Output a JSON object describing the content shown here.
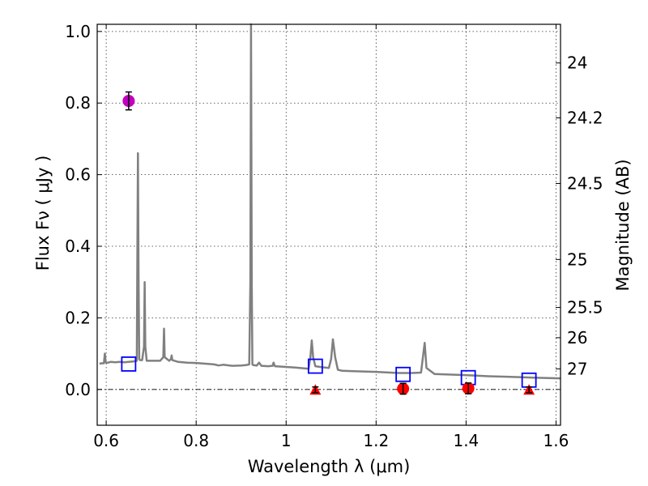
{
  "chart_data": {
    "type": "scatter",
    "xlabel": "Wavelength  λ (μm)",
    "ylabel": "Flux  Fν  ( μJy )",
    "y2label": "Magnitude (AB)",
    "xlim": [
      0.58,
      1.61
    ],
    "ylim": [
      -0.1,
      1.02
    ],
    "x_ticks": [
      0.6,
      0.8,
      1.0,
      1.2,
      1.4,
      1.6
    ],
    "x_tick_labels": [
      "0.6",
      "0.8",
      "1",
      "1.2",
      "1.4",
      "1.6"
    ],
    "y_ticks": [
      0.0,
      0.2,
      0.4,
      0.6,
      0.8,
      1.0
    ],
    "y_tick_labels": [
      "0.0",
      "0.2",
      "0.4",
      "0.6",
      "0.8",
      "1.0"
    ],
    "y2_ticks": [
      24,
      24.2,
      24.5,
      25,
      25.5,
      26,
      27
    ],
    "y2_tick_labels": [
      "24",
      "24.2",
      "24.5",
      "25",
      "25.5",
      "26",
      "27"
    ],
    "grid": true,
    "colors": {
      "spectrum": "#808080",
      "model_boxes": "#0000ff",
      "detection_magenta": "#bf00bf",
      "photometry_red": "#ff0000",
      "zero_line": "#000000"
    },
    "series": [
      {
        "name": "model spectrum",
        "kind": "line",
        "x": [
          0.585,
          0.59,
          0.595,
          0.597,
          0.599,
          0.601,
          0.61,
          0.62,
          0.63,
          0.64,
          0.65,
          0.66,
          0.668,
          0.669,
          0.6705,
          0.672,
          0.6735,
          0.675,
          0.68,
          0.684,
          0.6855,
          0.687,
          0.69,
          0.7,
          0.72,
          0.727,
          0.7285,
          0.73,
          0.74,
          0.744,
          0.7455,
          0.747,
          0.76,
          0.78,
          0.8,
          0.82,
          0.84,
          0.85,
          0.86,
          0.88,
          0.9,
          0.91,
          0.918,
          0.9205,
          0.922,
          0.9235,
          0.925,
          0.927,
          0.935,
          0.94,
          0.945,
          0.96,
          0.97,
          0.972,
          0.975,
          1.0,
          1.02,
          1.04,
          1.05,
          1.054,
          1.057,
          1.06,
          1.065,
          1.08,
          1.095,
          1.1,
          1.104,
          1.109,
          1.115,
          1.125,
          1.15,
          1.2,
          1.25,
          1.28,
          1.3,
          1.304,
          1.308,
          1.312,
          1.33,
          1.4,
          1.45,
          1.5,
          1.55,
          1.61
        ],
        "y": [
          0.072,
          0.073,
          0.073,
          0.1,
          0.076,
          0.074,
          0.077,
          0.076,
          0.077,
          0.076,
          0.077,
          0.078,
          0.08,
          0.3,
          0.66,
          0.3,
          0.085,
          0.082,
          0.082,
          0.12,
          0.3,
          0.12,
          0.08,
          0.08,
          0.08,
          0.09,
          0.17,
          0.09,
          0.08,
          0.085,
          0.095,
          0.082,
          0.077,
          0.075,
          0.074,
          0.072,
          0.07,
          0.067,
          0.069,
          0.066,
          0.067,
          0.068,
          0.07,
          0.3,
          1.02,
          0.3,
          0.07,
          0.068,
          0.067,
          0.075,
          0.066,
          0.065,
          0.066,
          0.075,
          0.065,
          0.063,
          0.061,
          0.059,
          0.058,
          0.09,
          0.137,
          0.09,
          0.065,
          0.062,
          0.06,
          0.085,
          0.14,
          0.09,
          0.055,
          0.052,
          0.051,
          0.049,
          0.046,
          0.046,
          0.047,
          0.09,
          0.13,
          0.06,
          0.043,
          0.04,
          0.037,
          0.035,
          0.033,
          0.031
        ]
      },
      {
        "name": "model band fluxes",
        "kind": "open-square",
        "x": [
          0.65,
          1.065,
          1.26,
          1.405,
          1.54
        ],
        "y": [
          0.071,
          0.065,
          0.042,
          0.033,
          0.026
        ]
      },
      {
        "name": "detection",
        "kind": "filled-circle-errorbar",
        "x": [
          0.65
        ],
        "y": [
          0.806
        ],
        "yerr": [
          0.025
        ]
      },
      {
        "name": "measured fluxes",
        "kind": "filled-circle-errorbar",
        "x": [
          1.26,
          1.405
        ],
        "y": [
          0.002,
          0.003
        ],
        "yerr": [
          0.015,
          0.015
        ]
      },
      {
        "name": "upper limits",
        "kind": "filled-triangle",
        "x": [
          1.065,
          1.54
        ],
        "y": [
          -0.001,
          -0.001
        ],
        "yerr": [
          0.008,
          0.008
        ]
      }
    ]
  }
}
